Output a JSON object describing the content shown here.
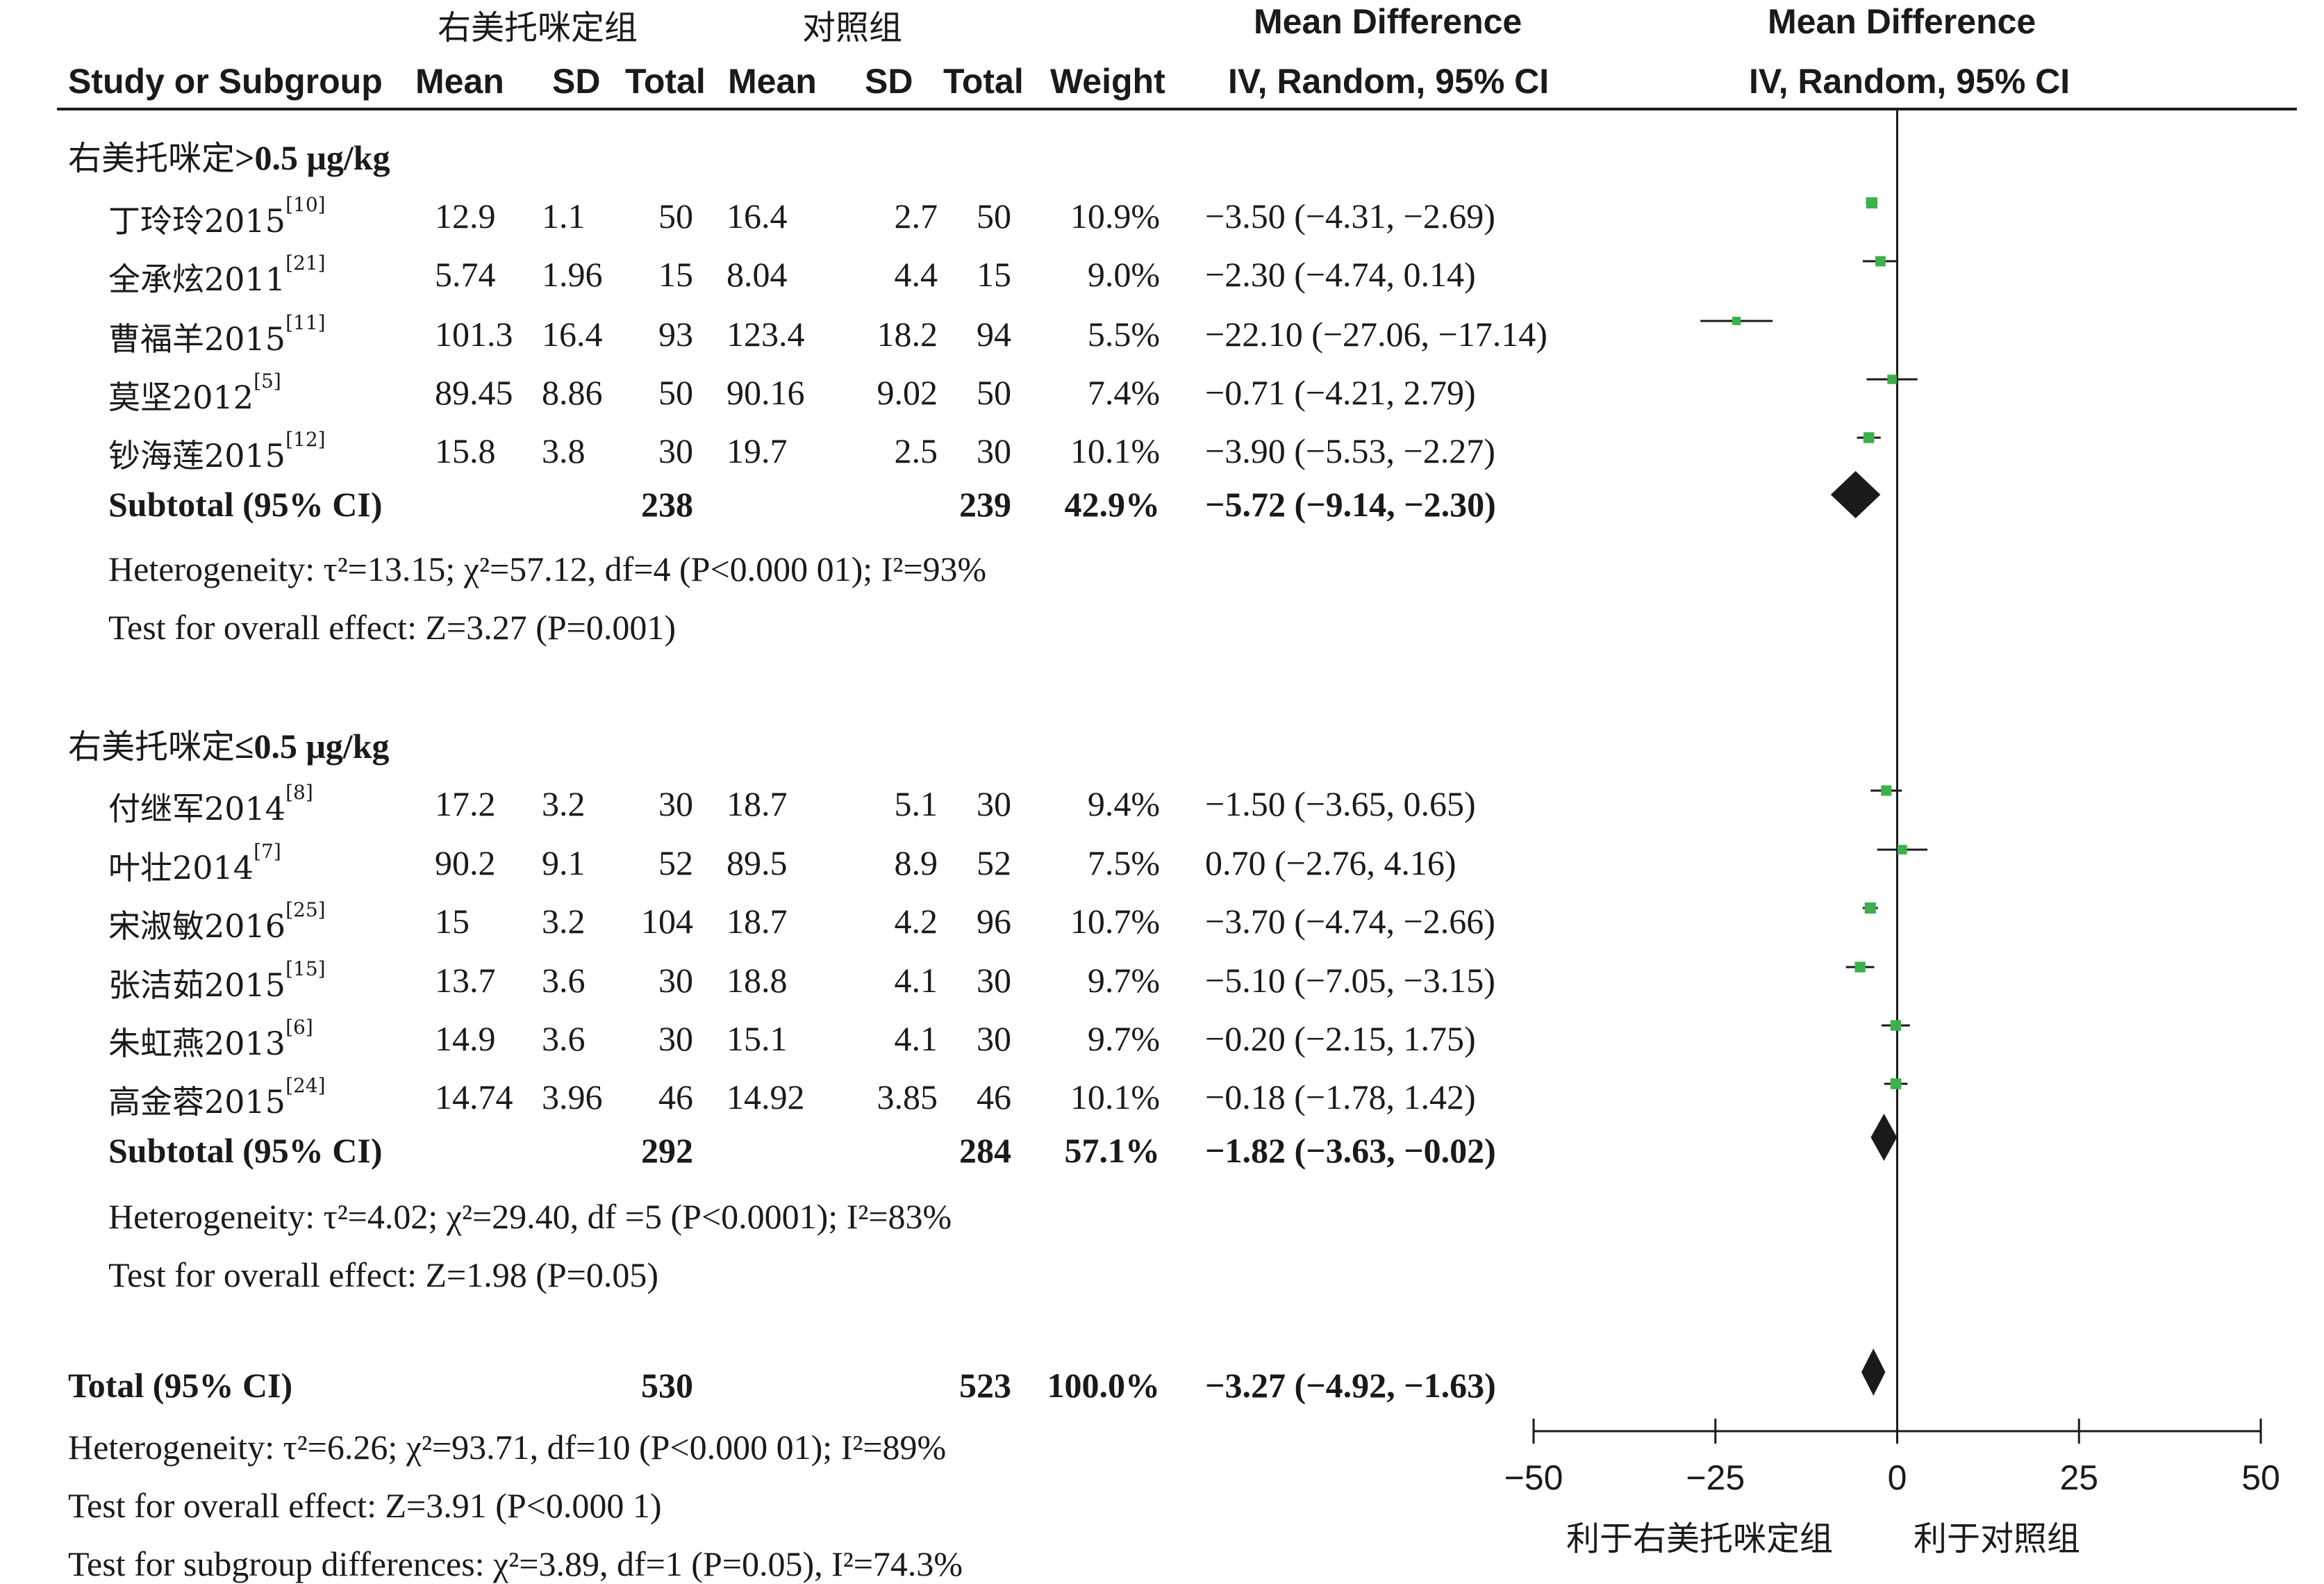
{
  "headers": {
    "group_exp": "右美托咪定组",
    "group_ctrl": "对照组",
    "md_title": "Mean Difference",
    "plot_title": "Mean Difference",
    "study": "Study or Subgroup",
    "mean1": "Mean",
    "sd1": "SD",
    "total1": "Total",
    "mean2": "Mean",
    "sd2": "SD",
    "total2": "Total",
    "weight": "Weight",
    "md_method": "IV, Random, 95% CI",
    "plot_method": "IV, Random, 95% CI"
  },
  "subgroups": [
    {
      "title_cn": "右美托咪定",
      "title_rest": ">0.5 μg/kg",
      "studies": [
        {
          "name": "丁玲玲2015",
          "ref": "[10]",
          "mean1": "12.9",
          "sd1": "1.1",
          "n1": "50",
          "mean2": "16.4",
          "sd2": "2.7",
          "n2": "50",
          "weight": "10.9%",
          "ci": "−3.50 (−4.31, −2.69)"
        },
        {
          "name": "全承炫2011",
          "ref": "[21]",
          "mean1": "5.74",
          "sd1": "1.96",
          "n1": "15",
          "mean2": "8.04",
          "sd2": "4.4",
          "n2": "15",
          "weight": "9.0%",
          "ci": "−2.30 (−4.74, 0.14)"
        },
        {
          "name": "曹福羊2015",
          "ref": "[11]",
          "mean1": "101.3",
          "sd1": "16.4",
          "n1": "93",
          "mean2": "123.4",
          "sd2": "18.2",
          "n2": "94",
          "weight": "5.5%",
          "ci": "−22.10 (−27.06, −17.14)"
        },
        {
          "name": "莫坚2012",
          "ref": "[5]",
          "mean1": "89.45",
          "sd1": "8.86",
          "n1": "50",
          "mean2": "90.16",
          "sd2": "9.02",
          "n2": "50",
          "weight": "7.4%",
          "ci": "−0.71 (−4.21, 2.79)"
        },
        {
          "name": "钞海莲2015",
          "ref": "[12]",
          "mean1": "15.8",
          "sd1": "3.8",
          "n1": "30",
          "mean2": "19.7",
          "sd2": "2.5",
          "n2": "30",
          "weight": "10.1%",
          "ci": "−3.90 (−5.53, −2.27)"
        }
      ],
      "subtotal": {
        "label": "Subtotal (95% CI)",
        "n1": "238",
        "n2": "239",
        "weight": "42.9%",
        "ci": "−5.72 (−9.14, −2.30)"
      },
      "heterogeneity": "Heterogeneity: τ²=13.15; χ²=57.12, df=4 (P<0.000 01); I²=93%",
      "overall": "Test for overall effect: Z=3.27 (P=0.001)"
    },
    {
      "title_cn": "右美托咪定",
      "title_rest": "≤0.5 μg/kg",
      "studies": [
        {
          "name": "付继军2014",
          "ref": "[8]",
          "mean1": "17.2",
          "sd1": "3.2",
          "n1": "30",
          "mean2": "18.7",
          "sd2": "5.1",
          "n2": "30",
          "weight": "9.4%",
          "ci": "−1.50 (−3.65, 0.65)"
        },
        {
          "name": "叶壮2014",
          "ref": "[7]",
          "mean1": "90.2",
          "sd1": "9.1",
          "n1": "52",
          "mean2": "89.5",
          "sd2": "8.9",
          "n2": "52",
          "weight": "7.5%",
          "ci": "0.70 (−2.76, 4.16)"
        },
        {
          "name": "宋淑敏2016",
          "ref": "[25]",
          "mean1": "15",
          "sd1": "3.2",
          "n1": "104",
          "mean2": "18.7",
          "sd2": "4.2",
          "n2": "96",
          "weight": "10.7%",
          "ci": "−3.70 (−4.74, −2.66)"
        },
        {
          "name": "张洁茹2015",
          "ref": "[15]",
          "mean1": "13.7",
          "sd1": "3.6",
          "n1": "30",
          "mean2": "18.8",
          "sd2": "4.1",
          "n2": "30",
          "weight": "9.7%",
          "ci": "−5.10 (−7.05, −3.15)"
        },
        {
          "name": "朱虹燕2013",
          "ref": "[6]",
          "mean1": "14.9",
          "sd1": "3.6",
          "n1": "30",
          "mean2": "15.1",
          "sd2": "4.1",
          "n2": "30",
          "weight": "9.7%",
          "ci": "−0.20 (−2.15, 1.75)"
        },
        {
          "name": "高金蓉2015",
          "ref": "[24]",
          "mean1": "14.74",
          "sd1": "3.96",
          "n1": "46",
          "mean2": "14.92",
          "sd2": "3.85",
          "n2": "46",
          "weight": "10.1%",
          "ci": "−0.18 (−1.78, 1.42)"
        }
      ],
      "subtotal": {
        "label": "Subtotal (95% CI)",
        "n1": "292",
        "n2": "284",
        "weight": "57.1%",
        "ci": "−1.82 (−3.63, −0.02)"
      },
      "heterogeneity": "Heterogeneity: τ²=4.02; χ²=29.40, df =5 (P<0.0001); I²=83%",
      "overall": "Test for overall effect: Z=1.98 (P=0.05)"
    }
  ],
  "total": {
    "label": "Total (95% CI)",
    "n1": "530",
    "n2": "523",
    "weight": "100.0%",
    "ci": "−3.27 (−4.92, −1.63)"
  },
  "total_notes": [
    "Heterogeneity: τ²=6.26; χ²=93.71, df=10 (P<0.000 01); I²=89%",
    "Test for overall effect: Z=3.91 (P<0.000 1)",
    "Test for subgroup differences: χ²=3.89, df=1 (P=0.05), I²=74.3%"
  ],
  "axis": {
    "ticks": [
      -50,
      -25,
      0,
      25,
      50
    ],
    "tick_labels": [
      "−50",
      "−25",
      "0",
      "25",
      "50"
    ],
    "favours_left": "利于右美托咪定组",
    "favours_right": "利于对照组"
  },
  "colors": {
    "square": "#3cb04a",
    "diamond": "#1a1a1a",
    "line": "#1a1a1a"
  },
  "chart_data": {
    "type": "forest",
    "xlim": [
      -50,
      50
    ],
    "null_line": 0,
    "studies": [
      {
        "name": "丁玲玲2015",
        "md": -3.5,
        "lo": -4.31,
        "hi": -2.69,
        "weight": 10.9
      },
      {
        "name": "全承炫2011",
        "md": -2.3,
        "lo": -4.74,
        "hi": 0.14,
        "weight": 9.0
      },
      {
        "name": "曹福羊2015",
        "md": -22.1,
        "lo": -27.06,
        "hi": -17.14,
        "weight": 5.5
      },
      {
        "name": "莫坚2012",
        "md": -0.71,
        "lo": -4.21,
        "hi": 2.79,
        "weight": 7.4
      },
      {
        "name": "钞海莲2015",
        "md": -3.9,
        "lo": -5.53,
        "hi": -2.27,
        "weight": 10.1
      },
      {
        "name": "付继军2014",
        "md": -1.5,
        "lo": -3.65,
        "hi": 0.65,
        "weight": 9.4
      },
      {
        "name": "叶壮2014",
        "md": 0.7,
        "lo": -2.76,
        "hi": 4.16,
        "weight": 7.5
      },
      {
        "name": "宋淑敏2016",
        "md": -3.7,
        "lo": -4.74,
        "hi": -2.66,
        "weight": 10.7
      },
      {
        "name": "张洁茹2015",
        "md": -5.1,
        "lo": -7.05,
        "hi": -3.15,
        "weight": 9.7
      },
      {
        "name": "朱虹燕2013",
        "md": -0.2,
        "lo": -2.15,
        "hi": 1.75,
        "weight": 9.7
      },
      {
        "name": "高金蓉2015",
        "md": -0.18,
        "lo": -1.78,
        "hi": 1.42,
        "weight": 10.1
      }
    ],
    "pooled": [
      {
        "name": "Subtotal (95% CI)",
        "md": -5.72,
        "lo": -9.14,
        "hi": -2.3
      },
      {
        "name": "Subtotal (95% CI)",
        "md": -1.82,
        "lo": -3.63,
        "hi": -0.02
      },
      {
        "name": "Total (95% CI)",
        "md": -3.27,
        "lo": -4.92,
        "hi": -1.63
      }
    ]
  }
}
